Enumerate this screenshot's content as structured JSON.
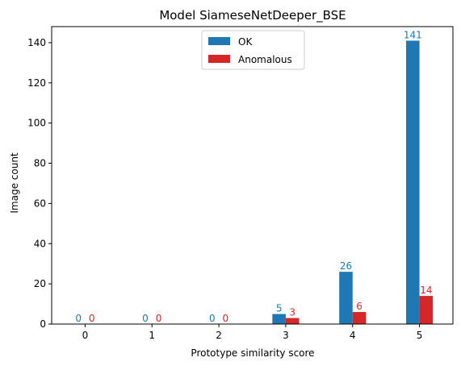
{
  "chart_data": {
    "type": "bar",
    "title": "Model SiameseNetDeeper_BSE",
    "xlabel": "Prototype similarity score",
    "ylabel": "Image count",
    "categories": [
      "0",
      "1",
      "2",
      "3",
      "4",
      "5"
    ],
    "x_values": [
      0,
      1,
      2,
      3,
      4,
      5
    ],
    "series": [
      {
        "name": "OK",
        "color": "#1f77b4",
        "values": [
          0,
          0,
          0,
          5,
          26,
          141
        ]
      },
      {
        "name": "Anomalous",
        "color": "#d62728",
        "values": [
          0,
          0,
          0,
          3,
          6,
          14
        ]
      }
    ],
    "ylim": [
      0,
      148
    ],
    "yticks": [
      0,
      20,
      40,
      60,
      80,
      100,
      120,
      140
    ],
    "xlim": [
      -0.5,
      5.5
    ],
    "grid": false,
    "legend_position": "top-center",
    "data_labels": true
  }
}
